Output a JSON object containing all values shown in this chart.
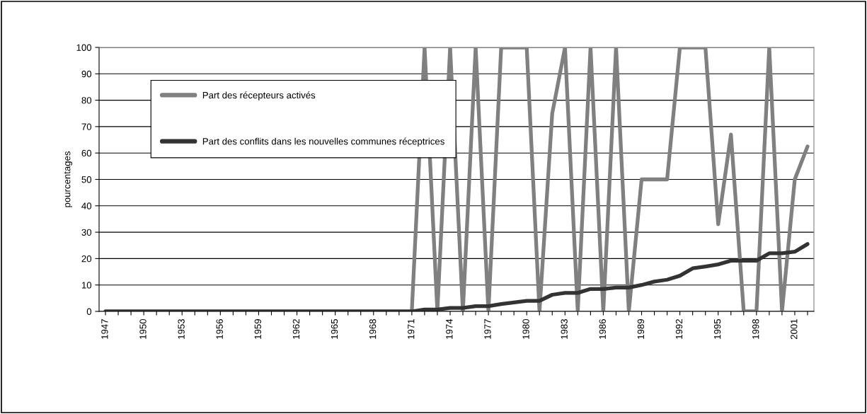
{
  "chart_data": {
    "type": "line",
    "ylabel": "pourcentages",
    "categories": [
      "1947",
      null,
      null,
      "1950",
      null,
      null,
      "1953",
      null,
      null,
      "1956",
      null,
      null,
      "1959",
      null,
      null,
      "1962",
      null,
      null,
      "1965",
      null,
      null,
      "1968",
      null,
      null,
      "1971",
      null,
      null,
      "1974",
      null,
      null,
      "1977",
      null,
      null,
      "1980",
      null,
      null,
      "1983",
      null,
      null,
      "1986",
      null,
      null,
      "1989",
      null,
      null,
      "1992",
      null,
      null,
      "1995",
      null,
      null,
      "1998",
      null,
      null,
      "2001",
      null
    ],
    "series": [
      {
        "name": "Part des récepteurs activés",
        "color": "#808080",
        "values": [
          null,
          null,
          null,
          null,
          null,
          null,
          null,
          null,
          null,
          null,
          null,
          null,
          null,
          null,
          null,
          null,
          null,
          null,
          null,
          null,
          null,
          null,
          null,
          null,
          0,
          100,
          0,
          100,
          0,
          100,
          0,
          100,
          100,
          100,
          0,
          75,
          100,
          0,
          100,
          0,
          100,
          0,
          50,
          50,
          50,
          100,
          100,
          100,
          33,
          67,
          0,
          0,
          100,
          0,
          50,
          62.5
        ]
      },
      {
        "name": "Part des conflits dans les nouvelles communes réceptrices",
        "color": "#333333",
        "values": [
          0,
          0,
          0,
          0,
          0,
          0,
          0,
          0,
          0,
          0,
          0,
          0,
          0,
          0,
          0,
          0,
          0,
          0,
          0,
          0,
          0,
          0,
          0,
          0,
          0,
          0.7,
          0.7,
          1.3,
          1.3,
          2,
          2,
          2.8,
          3.4,
          4,
          4,
          6.3,
          7,
          7,
          8.5,
          8.5,
          9,
          9,
          10,
          11.3,
          12,
          13.5,
          16.3,
          17,
          17.8,
          19.2,
          19.2,
          19.2,
          22,
          22,
          22.6,
          25.5
        ]
      }
    ],
    "ylim": [
      0,
      100
    ],
    "yticks": [
      0,
      10,
      20,
      30,
      40,
      50,
      60,
      70,
      80,
      90,
      100
    ],
    "grid": "y",
    "legend": "top left",
    "marker": "none",
    "line_style": "solid"
  }
}
